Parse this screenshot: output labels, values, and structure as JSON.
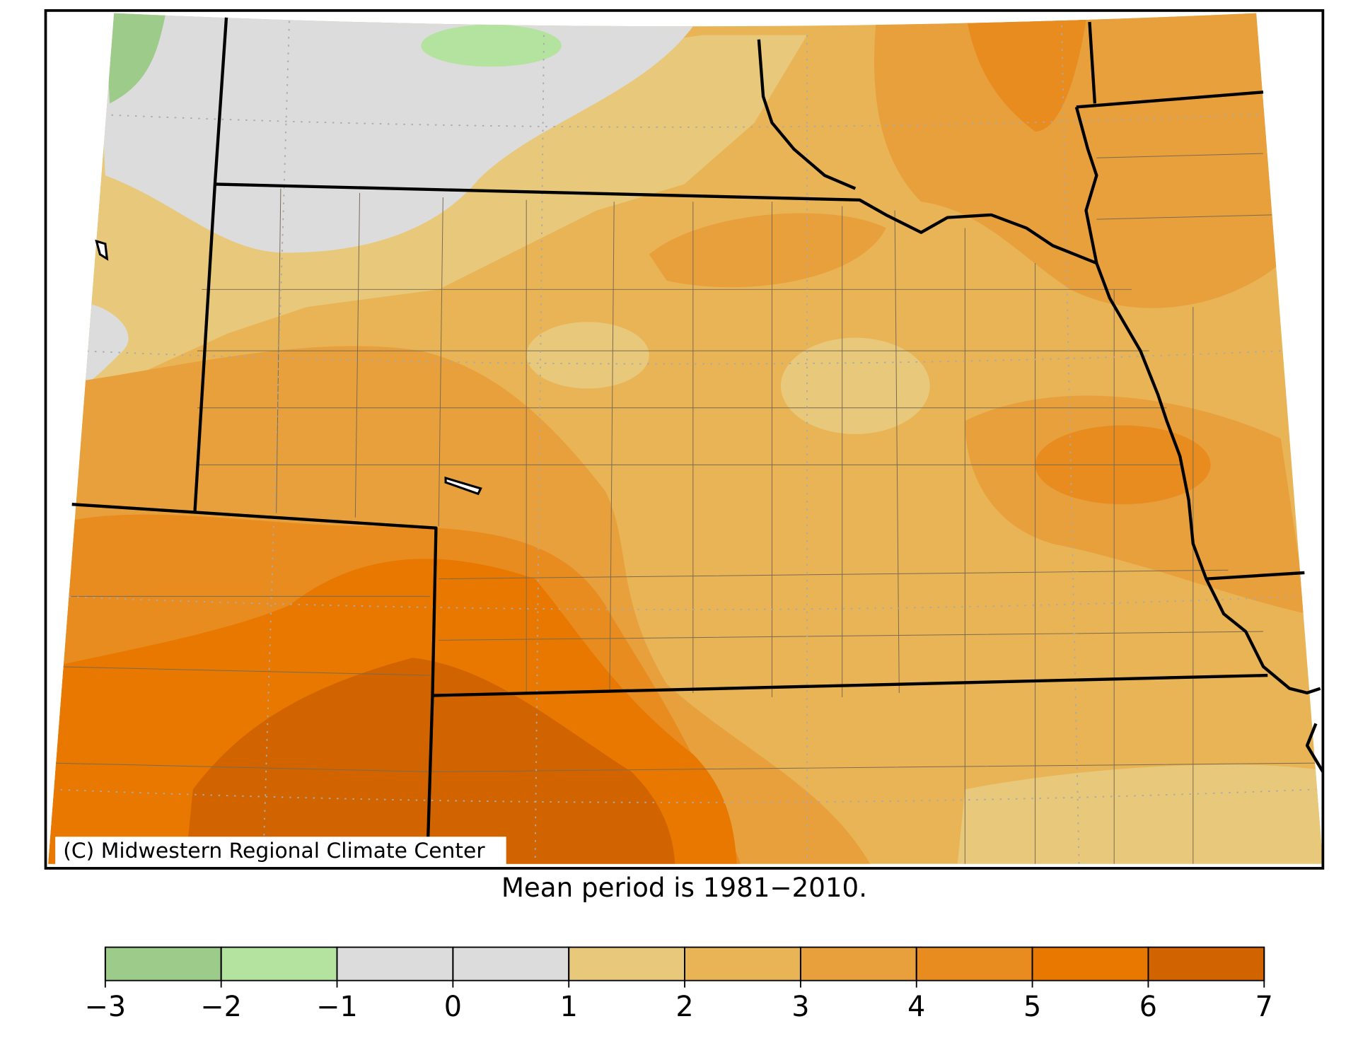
{
  "map": {
    "credit": "(C) Midwestern Regional Climate Center",
    "caption": "Mean period is 1981−2010.",
    "colorbar": {
      "ticks": [
        {
          "value": -3,
          "label": "−3"
        },
        {
          "value": -2,
          "label": "−2"
        },
        {
          "value": -1,
          "label": "−1"
        },
        0,
        1,
        2,
        3,
        4,
        5,
        6,
        7
      ],
      "colors": [
        "#9ccb8a",
        "#b3e39f",
        "#dcdcdc",
        "#dcdcdc",
        "#e8c87a",
        "#e8b455",
        "#e8a03c",
        "#e88c20",
        "#e87800",
        "#d26400"
      ]
    }
  }
}
